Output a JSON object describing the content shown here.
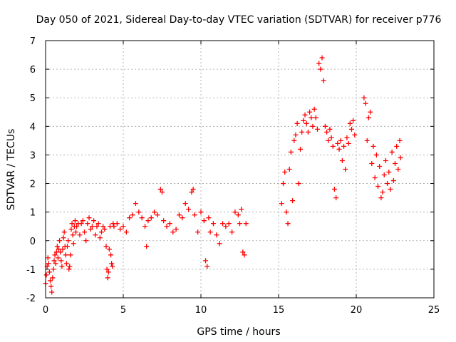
{
  "chart_data": {
    "type": "scatter",
    "title": "Day 050 of 2021, Sidereal Day-to-day VTEC variation (SDTVAR) for receiver p776",
    "xlabel": "GPS time / hours",
    "ylabel": "SDTVAR / TECUs",
    "xlim": [
      0,
      25
    ],
    "ylim": [
      -2,
      7
    ],
    "xticks": [
      0,
      5,
      10,
      15,
      20,
      25
    ],
    "yticks": [
      -2,
      -1,
      0,
      1,
      2,
      3,
      4,
      5,
      6,
      7
    ],
    "grid": true,
    "marker": "plus",
    "color": "#ff0000",
    "series": [
      {
        "name": "SDTVAR",
        "points": [
          [
            0.0,
            -1.5
          ],
          [
            0.05,
            -1.2
          ],
          [
            0.1,
            -0.9
          ],
          [
            0.15,
            -0.6
          ],
          [
            0.2,
            -0.8
          ],
          [
            0.25,
            -1.1
          ],
          [
            0.3,
            -1.4
          ],
          [
            0.35,
            -1.6
          ],
          [
            0.4,
            -1.8
          ],
          [
            0.45,
            -1.3
          ],
          [
            0.5,
            -1.0
          ],
          [
            0.55,
            -0.7
          ],
          [
            0.6,
            -0.5
          ],
          [
            0.65,
            -0.8
          ],
          [
            0.7,
            -0.4
          ],
          [
            0.75,
            -0.2
          ],
          [
            0.8,
            -0.6
          ],
          [
            0.85,
            -0.3
          ],
          [
            0.9,
            0.0
          ],
          [
            0.95,
            -0.4
          ],
          [
            1.0,
            -0.7
          ],
          [
            1.05,
            -0.9
          ],
          [
            1.1,
            -0.3
          ],
          [
            1.15,
            0.1
          ],
          [
            1.2,
            0.3
          ],
          [
            1.25,
            -0.2
          ],
          [
            1.3,
            -0.5
          ],
          [
            1.35,
            -0.8
          ],
          [
            1.4,
            -0.2
          ],
          [
            1.45,
            0.0
          ],
          [
            1.5,
            -1.0
          ],
          [
            1.55,
            -0.9
          ],
          [
            1.6,
            -0.5
          ],
          [
            1.65,
            0.4
          ],
          [
            1.7,
            0.6
          ],
          [
            1.75,
            0.2
          ],
          [
            1.8,
            -0.1
          ],
          [
            1.85,
            0.5
          ],
          [
            1.9,
            0.7
          ],
          [
            1.95,
            0.3
          ],
          [
            2.0,
            0.5
          ],
          [
            2.1,
            0.6
          ],
          [
            2.2,
            0.2
          ],
          [
            2.3,
            0.6
          ],
          [
            2.4,
            0.7
          ],
          [
            2.5,
            0.3
          ],
          [
            2.6,
            0.0
          ],
          [
            2.7,
            0.6
          ],
          [
            2.8,
            0.8
          ],
          [
            2.9,
            0.4
          ],
          [
            3.0,
            0.5
          ],
          [
            3.1,
            0.7
          ],
          [
            3.2,
            0.2
          ],
          [
            3.3,
            0.5
          ],
          [
            3.4,
            0.6
          ],
          [
            3.5,
            0.1
          ],
          [
            3.6,
            0.3
          ],
          [
            3.7,
            0.5
          ],
          [
            3.8,
            0.4
          ],
          [
            3.9,
            -0.2
          ],
          [
            3.95,
            -1.0
          ],
          [
            4.0,
            -1.3
          ],
          [
            4.05,
            -1.1
          ],
          [
            4.1,
            -0.3
          ],
          [
            4.15,
            0.5
          ],
          [
            4.2,
            -0.5
          ],
          [
            4.25,
            -0.8
          ],
          [
            4.3,
            -0.9
          ],
          [
            4.35,
            0.6
          ],
          [
            4.4,
            0.5
          ],
          [
            4.6,
            0.6
          ],
          [
            4.8,
            0.4
          ],
          [
            5.0,
            0.5
          ],
          [
            5.2,
            0.3
          ],
          [
            5.4,
            0.8
          ],
          [
            5.6,
            0.9
          ],
          [
            5.8,
            1.3
          ],
          [
            6.0,
            1.0
          ],
          [
            6.2,
            0.8
          ],
          [
            6.4,
            0.5
          ],
          [
            6.5,
            -0.2
          ],
          [
            6.6,
            0.7
          ],
          [
            6.8,
            0.8
          ],
          [
            7.0,
            1.0
          ],
          [
            7.2,
            0.9
          ],
          [
            7.4,
            1.8
          ],
          [
            7.5,
            1.7
          ],
          [
            7.6,
            0.7
          ],
          [
            7.8,
            0.5
          ],
          [
            8.0,
            0.6
          ],
          [
            8.2,
            0.3
          ],
          [
            8.4,
            0.4
          ],
          [
            8.6,
            0.9
          ],
          [
            8.8,
            0.8
          ],
          [
            9.0,
            1.3
          ],
          [
            9.2,
            1.1
          ],
          [
            9.4,
            1.7
          ],
          [
            9.5,
            1.8
          ],
          [
            9.6,
            0.9
          ],
          [
            9.8,
            0.3
          ],
          [
            10.0,
            1.0
          ],
          [
            10.2,
            0.7
          ],
          [
            10.3,
            -0.7
          ],
          [
            10.4,
            -0.9
          ],
          [
            10.5,
            0.8
          ],
          [
            10.6,
            0.3
          ],
          [
            10.8,
            0.6
          ],
          [
            11.0,
            0.2
          ],
          [
            11.2,
            -0.1
          ],
          [
            11.4,
            0.6
          ],
          [
            11.6,
            0.5
          ],
          [
            11.8,
            0.6
          ],
          [
            12.0,
            0.3
          ],
          [
            12.2,
            1.0
          ],
          [
            12.4,
            0.9
          ],
          [
            12.5,
            0.6
          ],
          [
            12.6,
            1.1
          ],
          [
            12.7,
            -0.4
          ],
          [
            12.8,
            -0.5
          ],
          [
            12.9,
            0.6
          ],
          [
            15.2,
            1.3
          ],
          [
            15.3,
            2.0
          ],
          [
            15.4,
            2.4
          ],
          [
            15.5,
            1.0
          ],
          [
            15.6,
            0.6
          ],
          [
            15.7,
            2.5
          ],
          [
            15.8,
            3.1
          ],
          [
            15.9,
            1.4
          ],
          [
            16.0,
            3.5
          ],
          [
            16.1,
            3.7
          ],
          [
            16.2,
            4.1
          ],
          [
            16.3,
            2.0
          ],
          [
            16.4,
            3.2
          ],
          [
            16.5,
            3.8
          ],
          [
            16.6,
            4.2
          ],
          [
            16.7,
            4.4
          ],
          [
            16.8,
            4.1
          ],
          [
            16.9,
            3.8
          ],
          [
            17.0,
            4.5
          ],
          [
            17.1,
            4.3
          ],
          [
            17.2,
            4.0
          ],
          [
            17.3,
            4.6
          ],
          [
            17.4,
            4.3
          ],
          [
            17.5,
            3.9
          ],
          [
            17.6,
            6.2
          ],
          [
            17.7,
            6.0
          ],
          [
            17.8,
            6.4
          ],
          [
            17.9,
            5.6
          ],
          [
            18.0,
            4.0
          ],
          [
            18.1,
            3.8
          ],
          [
            18.2,
            3.5
          ],
          [
            18.3,
            3.9
          ],
          [
            18.4,
            3.6
          ],
          [
            18.5,
            3.3
          ],
          [
            18.6,
            1.8
          ],
          [
            18.7,
            1.5
          ],
          [
            18.8,
            3.4
          ],
          [
            18.9,
            3.2
          ],
          [
            19.0,
            3.5
          ],
          [
            19.1,
            2.8
          ],
          [
            19.2,
            3.3
          ],
          [
            19.3,
            2.5
          ],
          [
            19.4,
            3.6
          ],
          [
            19.5,
            3.4
          ],
          [
            19.6,
            4.1
          ],
          [
            19.7,
            3.9
          ],
          [
            19.8,
            4.2
          ],
          [
            19.9,
            3.7
          ],
          [
            20.5,
            5.0
          ],
          [
            20.6,
            4.8
          ],
          [
            20.7,
            3.5
          ],
          [
            20.8,
            4.3
          ],
          [
            20.9,
            4.5
          ],
          [
            21.0,
            2.7
          ],
          [
            21.1,
            3.3
          ],
          [
            21.2,
            2.2
          ],
          [
            21.3,
            3.0
          ],
          [
            21.4,
            1.9
          ],
          [
            21.5,
            2.6
          ],
          [
            21.6,
            1.5
          ],
          [
            21.7,
            1.7
          ],
          [
            21.8,
            2.3
          ],
          [
            21.9,
            2.8
          ],
          [
            22.0,
            2.0
          ],
          [
            22.1,
            2.4
          ],
          [
            22.2,
            1.8
          ],
          [
            22.3,
            3.1
          ],
          [
            22.4,
            2.1
          ],
          [
            22.5,
            2.7
          ],
          [
            22.6,
            3.3
          ],
          [
            22.7,
            2.5
          ],
          [
            22.8,
            3.5
          ],
          [
            22.85,
            2.9
          ]
        ]
      }
    ]
  }
}
